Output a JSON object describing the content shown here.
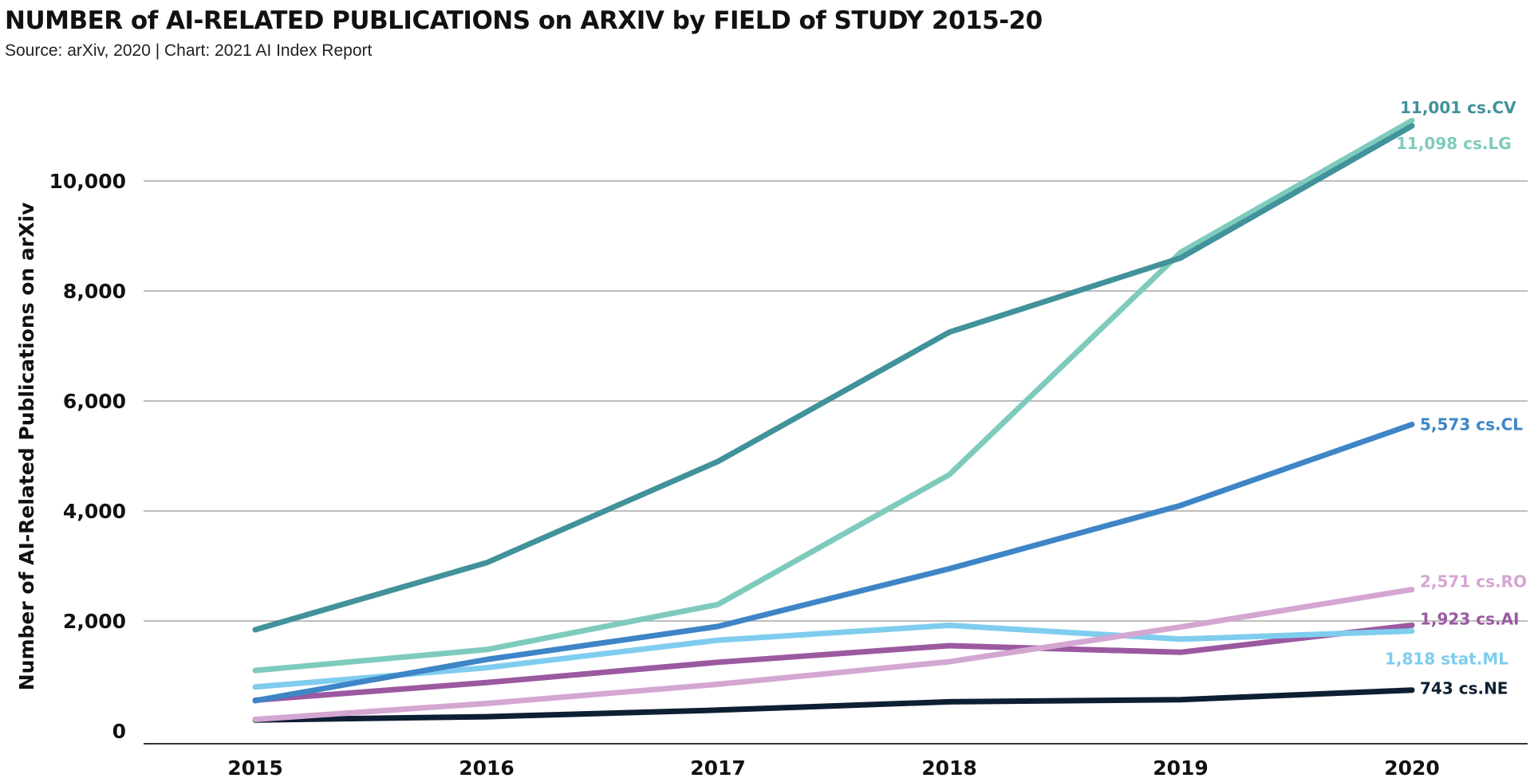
{
  "header": {
    "title": "NUMBER of AI-RELATED PUBLICATIONS on ARXIV by FIELD of STUDY 2015-20",
    "subtitle": "Source: arXiv, 2020 | Chart: 2021 AI Index Report"
  },
  "chart_data": {
    "type": "line",
    "title": "NUMBER of AI-RELATED PUBLICATIONS on ARXIV by FIELD of STUDY 2015-20",
    "subtitle": "Source: arXiv, 2020 | Chart: 2021 AI Index Report",
    "xlabel": "",
    "ylabel": "Number of AI-Related Publications on arXiv",
    "x": [
      2015,
      2016,
      2017,
      2018,
      2019,
      2020
    ],
    "x_tick_labels": [
      "2015",
      "2016",
      "2017",
      "2018",
      "2019",
      "2020"
    ],
    "ylim": [
      0,
      11500
    ],
    "y_ticks": [
      0,
      2000,
      4000,
      6000,
      8000,
      10000
    ],
    "y_tick_labels": [
      "0",
      "2,000",
      "4,000",
      "6,000",
      "8,000",
      "10,000"
    ],
    "grid": "horizontal",
    "legend": "none (end-of-line labels)",
    "series": [
      {
        "name": "cs.NE",
        "end_label": "743 cs.NE",
        "color": "#0e1f33",
        "values": [
          200,
          260,
          380,
          530,
          570,
          743
        ]
      },
      {
        "name": "cs.AI",
        "end_label": "1,923 cs.AI",
        "color": "#9b59a1",
        "values": [
          560,
          880,
          1250,
          1550,
          1430,
          1923
        ]
      },
      {
        "name": "stat.ML",
        "end_label": "1,818 stat.ML",
        "color": "#7fcdee",
        "values": [
          800,
          1150,
          1650,
          1920,
          1670,
          1818
        ]
      },
      {
        "name": "cs.RO",
        "end_label": "2,571 cs.RO",
        "color": "#d4a6d2",
        "values": [
          210,
          500,
          850,
          1260,
          1890,
          2571
        ]
      },
      {
        "name": "cs.CL",
        "end_label": "5,573 cs.CL",
        "color": "#3d85c6",
        "values": [
          550,
          1300,
          1900,
          2950,
          4100,
          5573
        ]
      },
      {
        "name": "cs.LG",
        "end_label": "11,098 cs.LG",
        "color": "#7ecbbd",
        "values": [
          1100,
          1480,
          2300,
          4660,
          8700,
          11098
        ]
      },
      {
        "name": "cs.CV",
        "end_label": "11,001 cs.CV",
        "color": "#41929a",
        "values": [
          1840,
          3060,
          4900,
          7250,
          8600,
          11001
        ]
      }
    ]
  }
}
